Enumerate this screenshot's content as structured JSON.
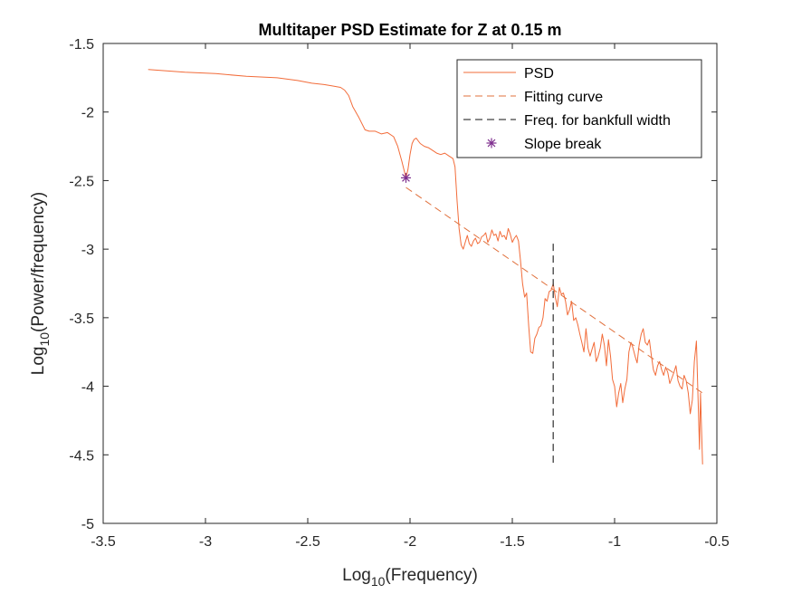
{
  "chart_data": {
    "type": "line",
    "title": "Multitaper PSD Estimate for Z at 0.15 m",
    "xlabel": {
      "base": "Log",
      "sub": "10",
      "rest": "(Frequency)"
    },
    "ylabel": {
      "base": "Log",
      "sub": "10",
      "rest": "(Power/frequency)"
    },
    "xlim": [
      -3.5,
      -0.5
    ],
    "ylim": [
      -5,
      -1.5
    ],
    "xticks": [
      -3.5,
      -3,
      -2.5,
      -2,
      -1.5,
      -1,
      -0.5
    ],
    "xtick_labels": [
      "-3.5",
      "-3",
      "-2.5",
      "-2",
      "-1.5",
      "-1",
      "-0.5"
    ],
    "yticks": [
      -5,
      -4.5,
      -4,
      -3.5,
      -3,
      -2.5,
      -2,
      -1.5
    ],
    "ytick_labels": [
      "-5",
      "-4.5",
      "-4",
      "-3.5",
      "-3",
      "-2.5",
      "-2",
      "-1.5"
    ],
    "grid": false,
    "legend_position": "top-right",
    "colors": {
      "psd": "#f26c3a",
      "fit": "#e0703c",
      "bankfull": "#404040",
      "slope_break": "#7e2f8e"
    },
    "series": [
      {
        "name": "PSD",
        "style": "solid",
        "x": [
          -3.28,
          -3.1,
          -2.95,
          -2.8,
          -2.65,
          -2.55,
          -2.48,
          -2.42,
          -2.38,
          -2.34,
          -2.32,
          -2.3,
          -2.28,
          -2.25,
          -2.22,
          -2.2,
          -2.17,
          -2.14,
          -2.11,
          -2.08,
          -2.06,
          -2.04,
          -2.02,
          -2.01,
          -2.0,
          -1.99,
          -1.98,
          -1.97,
          -1.96,
          -1.95,
          -1.93,
          -1.91,
          -1.89,
          -1.87,
          -1.85,
          -1.83,
          -1.81,
          -1.79,
          -1.78,
          -1.77,
          -1.76,
          -1.75,
          -1.74,
          -1.73,
          -1.72,
          -1.71,
          -1.7,
          -1.69,
          -1.68,
          -1.67,
          -1.66,
          -1.65,
          -1.64,
          -1.63,
          -1.62,
          -1.61,
          -1.6,
          -1.59,
          -1.58,
          -1.57,
          -1.56,
          -1.55,
          -1.54,
          -1.53,
          -1.52,
          -1.51,
          -1.5,
          -1.49,
          -1.48,
          -1.47,
          -1.46,
          -1.45,
          -1.44,
          -1.43,
          -1.42,
          -1.41,
          -1.4,
          -1.39,
          -1.38,
          -1.37,
          -1.36,
          -1.35,
          -1.34,
          -1.33,
          -1.32,
          -1.31,
          -1.3,
          -1.29,
          -1.28,
          -1.27,
          -1.26,
          -1.25,
          -1.24,
          -1.23,
          -1.22,
          -1.21,
          -1.2,
          -1.19,
          -1.18,
          -1.17,
          -1.16,
          -1.15,
          -1.14,
          -1.13,
          -1.12,
          -1.11,
          -1.1,
          -1.09,
          -1.08,
          -1.07,
          -1.06,
          -1.05,
          -1.04,
          -1.03,
          -1.02,
          -1.01,
          -1.0,
          -0.99,
          -0.98,
          -0.97,
          -0.96,
          -0.95,
          -0.94,
          -0.93,
          -0.92,
          -0.91,
          -0.9,
          -0.89,
          -0.88,
          -0.87,
          -0.86,
          -0.85,
          -0.84,
          -0.83,
          -0.82,
          -0.81,
          -0.8,
          -0.79,
          -0.78,
          -0.77,
          -0.76,
          -0.75,
          -0.74,
          -0.73,
          -0.72,
          -0.71,
          -0.7,
          -0.69,
          -0.68,
          -0.67,
          -0.66,
          -0.65,
          -0.64,
          -0.63,
          -0.62,
          -0.61,
          -0.6,
          -0.59,
          -0.585,
          -0.58,
          -0.575,
          -0.57
        ],
        "y": [
          -1.69,
          -1.71,
          -1.72,
          -1.74,
          -1.75,
          -1.77,
          -1.79,
          -1.8,
          -1.81,
          -1.82,
          -1.84,
          -1.88,
          -1.96,
          -2.04,
          -2.13,
          -2.14,
          -2.14,
          -2.16,
          -2.15,
          -2.18,
          -2.25,
          -2.36,
          -2.48,
          -2.42,
          -2.31,
          -2.23,
          -2.2,
          -2.19,
          -2.21,
          -2.23,
          -2.25,
          -2.26,
          -2.28,
          -2.3,
          -2.31,
          -2.3,
          -2.32,
          -2.34,
          -2.4,
          -2.65,
          -2.85,
          -2.97,
          -3.0,
          -2.95,
          -2.9,
          -2.96,
          -2.98,
          -2.94,
          -2.92,
          -2.96,
          -2.95,
          -2.91,
          -2.9,
          -2.88,
          -2.95,
          -2.92,
          -2.86,
          -2.9,
          -2.89,
          -2.94,
          -2.87,
          -2.91,
          -2.9,
          -2.93,
          -2.85,
          -2.89,
          -2.95,
          -2.92,
          -2.9,
          -2.94,
          -3.08,
          -3.25,
          -3.35,
          -3.32,
          -3.56,
          -3.75,
          -3.76,
          -3.65,
          -3.62,
          -3.57,
          -3.56,
          -3.5,
          -3.36,
          -3.38,
          -3.31,
          -3.3,
          -3.25,
          -3.35,
          -3.42,
          -3.28,
          -3.33,
          -3.32,
          -3.38,
          -3.48,
          -3.44,
          -3.38,
          -3.52,
          -3.5,
          -3.55,
          -3.62,
          -3.68,
          -3.75,
          -3.58,
          -3.72,
          -3.78,
          -3.73,
          -3.68,
          -3.82,
          -3.78,
          -3.72,
          -3.62,
          -3.7,
          -3.85,
          -3.66,
          -3.78,
          -3.95,
          -4.0,
          -4.15,
          -4.05,
          -3.98,
          -4.12,
          -4.02,
          -3.95,
          -3.75,
          -3.68,
          -3.72,
          -3.78,
          -3.83,
          -3.7,
          -3.62,
          -3.58,
          -3.68,
          -3.7,
          -3.66,
          -3.78,
          -3.88,
          -3.92,
          -3.85,
          -3.82,
          -3.88,
          -3.92,
          -3.86,
          -3.9,
          -3.98,
          -3.94,
          -3.9,
          -3.85,
          -3.96,
          -4.0,
          -4.02,
          -3.92,
          -3.96,
          -4.05,
          -4.2,
          -4.1,
          -3.82,
          -3.67,
          -4.2,
          -4.46,
          -4.05,
          -4.3,
          -4.57
        ]
      },
      {
        "name": "Fitting curve",
        "style": "dashed",
        "x": [
          -2.02,
          -0.57
        ],
        "y": [
          -2.55,
          -4.05
        ]
      },
      {
        "name": "Freq. for bankfull width",
        "style": "dashed",
        "x": [
          -1.3,
          -1.3
        ],
        "y": [
          -2.96,
          -4.59
        ]
      },
      {
        "name": "Slope break",
        "style": "marker",
        "x": [
          -2.02
        ],
        "y": [
          -2.48
        ]
      }
    ]
  }
}
